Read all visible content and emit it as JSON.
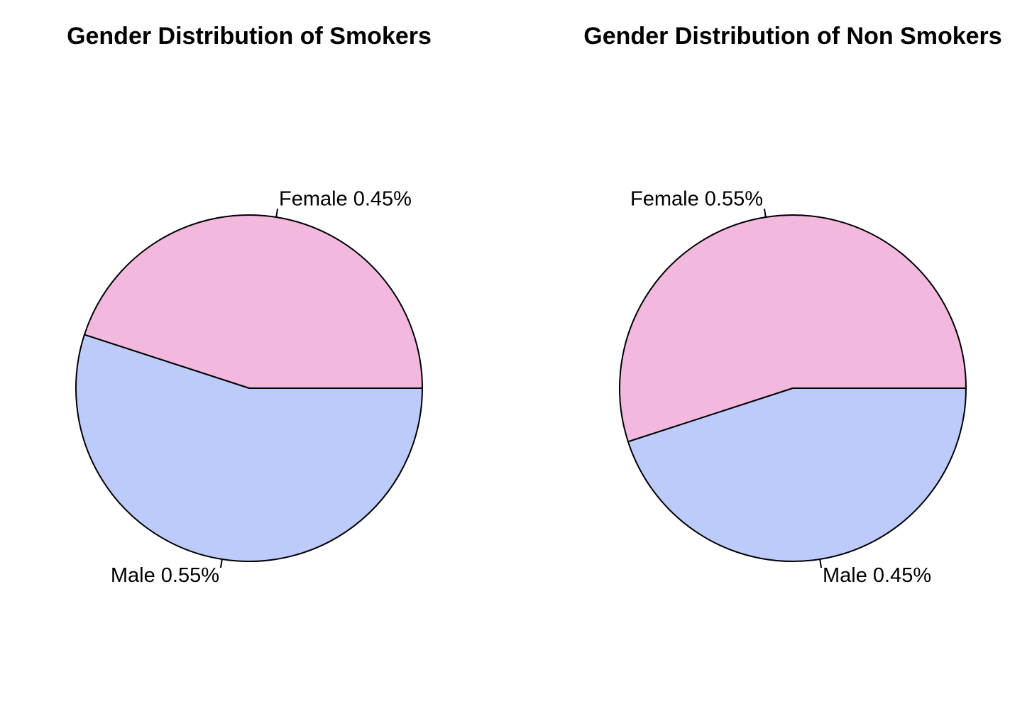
{
  "chart_data": [
    {
      "type": "pie",
      "title": "Gender Distribution of Smokers",
      "slices": [
        {
          "label": "Female",
          "value": 0.45,
          "label_text": "Female 0.45%",
          "color": "#F2B8DE"
        },
        {
          "label": "Male",
          "value": 0.55,
          "label_text": "Male 0.55%",
          "color": "#BCCBFA"
        }
      ]
    },
    {
      "type": "pie",
      "title": "Gender Distribution of Non Smokers",
      "slices": [
        {
          "label": "Female",
          "value": 0.55,
          "label_text": "Female 0.55%",
          "color": "#F2B8DE"
        },
        {
          "label": "Male",
          "value": 0.45,
          "label_text": "Male 0.45%",
          "color": "#BCCBFA"
        }
      ]
    }
  ]
}
